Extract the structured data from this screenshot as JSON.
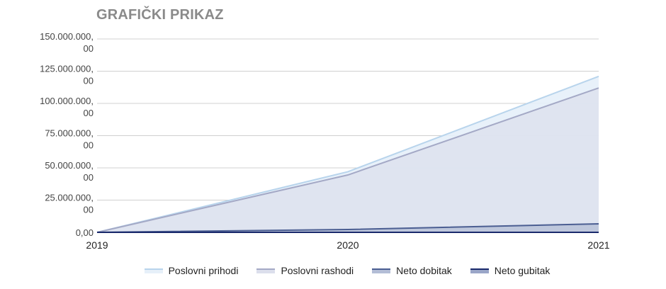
{
  "title": "GRAFIČKI PRIKAZ",
  "y_axis": {
    "ticks": [
      {
        "line1": "150.000.000,",
        "line2": "00"
      },
      {
        "line1": "125.000.000,",
        "line2": "00"
      },
      {
        "line1": "100.000.000,",
        "line2": "00"
      },
      {
        "line1": "75.000.000,",
        "line2": "00"
      },
      {
        "line1": "50.000.000,",
        "line2": "00"
      },
      {
        "line1": "25.000.000,",
        "line2": "00"
      },
      {
        "line1": "0,00",
        "line2": ""
      }
    ]
  },
  "x_axis": {
    "ticks": [
      "2019",
      "2020",
      "2021"
    ]
  },
  "legend": [
    {
      "label": "Poslovni prihodi",
      "line": "#b8d4ec",
      "fill": "#e6f0f9"
    },
    {
      "label": "Poslovni rashodi",
      "line": "#a4a9c6",
      "fill": "#dcdfec"
    },
    {
      "label": "Neto dobitak",
      "line": "#4b5e92",
      "fill": "#b3bdd6"
    },
    {
      "label": "Neto gubitak",
      "line": "#1a2a6c",
      "fill": "#9aa6c8"
    }
  ],
  "chart_data": {
    "type": "area",
    "title": "GRAFIČKI PRIKAZ",
    "xlabel": "",
    "ylabel": "",
    "categories": [
      "2019",
      "2020",
      "2021"
    ],
    "ylim": [
      0,
      150000000
    ],
    "yticks": [
      0,
      25000000,
      50000000,
      75000000,
      100000000,
      125000000,
      150000000
    ],
    "grid": true,
    "legend_position": "bottom",
    "series": [
      {
        "name": "Poslovni prihodi",
        "values": [
          0,
          47000000,
          121000000
        ]
      },
      {
        "name": "Poslovni rashodi",
        "values": [
          0,
          44500000,
          112000000
        ]
      },
      {
        "name": "Neto dobitak",
        "values": [
          0,
          2200000,
          6600000
        ]
      },
      {
        "name": "Neto gubitak",
        "values": [
          0,
          0,
          0
        ]
      }
    ]
  }
}
